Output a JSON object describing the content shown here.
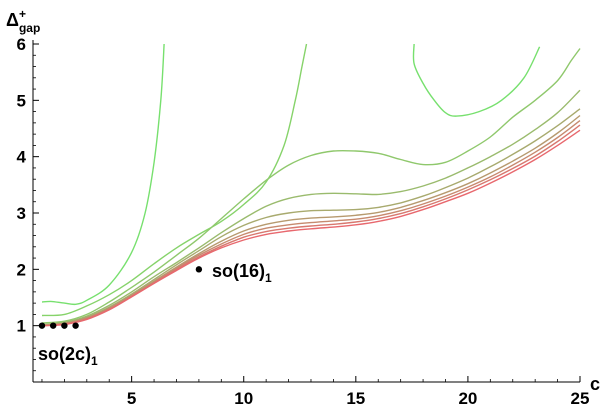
{
  "chart_data": {
    "type": "line",
    "title": "",
    "xlabel": "c",
    "ylabel": {
      "base": "Δ",
      "sup": "+",
      "sub": "gap"
    },
    "xlim": [
      0.6,
      25
    ],
    "ylim": [
      0,
      6
    ],
    "xticks": [
      5,
      10,
      15,
      20,
      25
    ],
    "yticks": [
      1,
      2,
      3,
      4,
      5,
      6
    ],
    "grid": false,
    "series": [
      {
        "color": "#77e06e",
        "points": [
          [
            1,
            1.42
          ],
          [
            1.4,
            1.43
          ],
          [
            2,
            1.4
          ],
          [
            2.5,
            1.38
          ],
          [
            3,
            1.45
          ],
          [
            4,
            1.72
          ],
          [
            5,
            2.3
          ],
          [
            5.6,
            3.0
          ],
          [
            6,
            3.9
          ],
          [
            6.3,
            5.0
          ],
          [
            6.45,
            6.0
          ]
        ]
      },
      {
        "color": "#86d36a",
        "points": [
          [
            1,
            1.18
          ],
          [
            2,
            1.2
          ],
          [
            3,
            1.35
          ],
          [
            4,
            1.55
          ],
          [
            5,
            1.8
          ],
          [
            6,
            2.1
          ],
          [
            7,
            2.38
          ],
          [
            8,
            2.62
          ],
          [
            9,
            2.85
          ],
          [
            10,
            3.15
          ],
          [
            11,
            3.55
          ],
          [
            11.8,
            4.2
          ],
          [
            12.3,
            5.0
          ],
          [
            12.6,
            5.6
          ],
          [
            12.8,
            6.0
          ]
        ]
      },
      {
        "color": "#77e06e",
        "points": [
          [
            17.6,
            6.0
          ],
          [
            17.6,
            5.65
          ],
          [
            18,
            5.3
          ],
          [
            18.5,
            5.0
          ],
          [
            19,
            4.78
          ],
          [
            19.5,
            4.72
          ],
          [
            20.5,
            4.8
          ],
          [
            21.5,
            5.0
          ],
          [
            22.5,
            5.4
          ],
          [
            23.2,
            5.95
          ]
        ]
      },
      {
        "color": "#8fc86c",
        "points": [
          [
            1,
            1.05
          ],
          [
            2,
            1.08
          ],
          [
            3,
            1.2
          ],
          [
            4,
            1.42
          ],
          [
            5,
            1.68
          ],
          [
            6,
            1.95
          ],
          [
            7,
            2.25
          ],
          [
            8,
            2.55
          ],
          [
            9,
            2.9
          ],
          [
            10,
            3.25
          ],
          [
            11,
            3.58
          ],
          [
            12,
            3.85
          ],
          [
            13,
            4.02
          ],
          [
            14,
            4.1
          ],
          [
            15,
            4.1
          ],
          [
            16,
            4.06
          ],
          [
            17,
            3.95
          ],
          [
            18,
            3.86
          ],
          [
            19,
            3.9
          ],
          [
            20,
            4.1
          ],
          [
            21,
            4.35
          ],
          [
            22,
            4.7
          ],
          [
            23,
            5.0
          ],
          [
            24,
            5.35
          ],
          [
            24.6,
            5.7
          ],
          [
            25,
            5.92
          ]
        ]
      },
      {
        "color": "#9abb6d",
        "points": [
          [
            1,
            1.02
          ],
          [
            2,
            1.06
          ],
          [
            3,
            1.17
          ],
          [
            4,
            1.36
          ],
          [
            5,
            1.6
          ],
          [
            6,
            1.87
          ],
          [
            7,
            2.12
          ],
          [
            8,
            2.38
          ],
          [
            9,
            2.65
          ],
          [
            10,
            2.9
          ],
          [
            11,
            3.12
          ],
          [
            12,
            3.26
          ],
          [
            13,
            3.33
          ],
          [
            14,
            3.35
          ],
          [
            15,
            3.34
          ],
          [
            16,
            3.33
          ],
          [
            17,
            3.38
          ],
          [
            18,
            3.48
          ],
          [
            19,
            3.62
          ],
          [
            20,
            3.8
          ],
          [
            21,
            4.0
          ],
          [
            22,
            4.22
          ],
          [
            23,
            4.48
          ],
          [
            24,
            4.78
          ],
          [
            25,
            5.18
          ]
        ]
      },
      {
        "color": "#a8aa6e",
        "points": [
          [
            1,
            1.01
          ],
          [
            2,
            1.05
          ],
          [
            3,
            1.15
          ],
          [
            4,
            1.33
          ],
          [
            5,
            1.56
          ],
          [
            6,
            1.82
          ],
          [
            7,
            2.08
          ],
          [
            8,
            2.33
          ],
          [
            9,
            2.58
          ],
          [
            10,
            2.78
          ],
          [
            11,
            2.92
          ],
          [
            12,
            3.0
          ],
          [
            13,
            3.04
          ],
          [
            14,
            3.05
          ],
          [
            15,
            3.06
          ],
          [
            16,
            3.1
          ],
          [
            17,
            3.18
          ],
          [
            18,
            3.3
          ],
          [
            19,
            3.45
          ],
          [
            20,
            3.62
          ],
          [
            21,
            3.82
          ],
          [
            22,
            4.04
          ],
          [
            23,
            4.28
          ],
          [
            24,
            4.55
          ],
          [
            25,
            4.85
          ]
        ]
      },
      {
        "color": "#b79a6f",
        "points": [
          [
            1,
            1.0
          ],
          [
            2,
            1.04
          ],
          [
            3,
            1.14
          ],
          [
            4,
            1.31
          ],
          [
            5,
            1.54
          ],
          [
            6,
            1.79
          ],
          [
            7,
            2.04
          ],
          [
            8,
            2.28
          ],
          [
            9,
            2.5
          ],
          [
            10,
            2.68
          ],
          [
            11,
            2.8
          ],
          [
            12,
            2.87
          ],
          [
            13,
            2.91
          ],
          [
            14,
            2.93
          ],
          [
            15,
            2.96
          ],
          [
            16,
            3.01
          ],
          [
            17,
            3.1
          ],
          [
            18,
            3.22
          ],
          [
            19,
            3.36
          ],
          [
            20,
            3.52
          ],
          [
            21,
            3.71
          ],
          [
            22,
            3.92
          ],
          [
            23,
            4.15
          ],
          [
            24,
            4.42
          ],
          [
            25,
            4.73
          ]
        ]
      },
      {
        "color": "#c78a6f",
        "points": [
          [
            1,
            1.0
          ],
          [
            2,
            1.03
          ],
          [
            3,
            1.13
          ],
          [
            4,
            1.3
          ],
          [
            5,
            1.53
          ],
          [
            6,
            1.77
          ],
          [
            7,
            2.02
          ],
          [
            8,
            2.25
          ],
          [
            9,
            2.45
          ],
          [
            10,
            2.62
          ],
          [
            11,
            2.73
          ],
          [
            12,
            2.79
          ],
          [
            13,
            2.83
          ],
          [
            14,
            2.86
          ],
          [
            15,
            2.89
          ],
          [
            16,
            2.95
          ],
          [
            17,
            3.04
          ],
          [
            18,
            3.16
          ],
          [
            19,
            3.3
          ],
          [
            20,
            3.46
          ],
          [
            21,
            3.64
          ],
          [
            22,
            3.85
          ],
          [
            23,
            4.08
          ],
          [
            24,
            4.34
          ],
          [
            25,
            4.64
          ]
        ]
      },
      {
        "color": "#d8786f",
        "points": [
          [
            1,
            1.0
          ],
          [
            2,
            1.03
          ],
          [
            3,
            1.12
          ],
          [
            4,
            1.29
          ],
          [
            5,
            1.52
          ],
          [
            6,
            1.76
          ],
          [
            7,
            2.0
          ],
          [
            8,
            2.22
          ],
          [
            9,
            2.41
          ],
          [
            10,
            2.57
          ],
          [
            11,
            2.67
          ],
          [
            12,
            2.73
          ],
          [
            13,
            2.77
          ],
          [
            14,
            2.8
          ],
          [
            15,
            2.84
          ],
          [
            16,
            2.9
          ],
          [
            17,
            2.99
          ],
          [
            18,
            3.11
          ],
          [
            19,
            3.25
          ],
          [
            20,
            3.41
          ],
          [
            21,
            3.59
          ],
          [
            22,
            3.79
          ],
          [
            23,
            4.01
          ],
          [
            24,
            4.27
          ],
          [
            25,
            4.56
          ]
        ]
      },
      {
        "color": "#e8686e",
        "points": [
          [
            1,
            1.0
          ],
          [
            2,
            1.02
          ],
          [
            3,
            1.11
          ],
          [
            4,
            1.28
          ],
          [
            5,
            1.51
          ],
          [
            6,
            1.75
          ],
          [
            7,
            1.98
          ],
          [
            8,
            2.2
          ],
          [
            9,
            2.38
          ],
          [
            10,
            2.52
          ],
          [
            11,
            2.62
          ],
          [
            12,
            2.68
          ],
          [
            13,
            2.72
          ],
          [
            14,
            2.75
          ],
          [
            15,
            2.79
          ],
          [
            16,
            2.85
          ],
          [
            17,
            2.94
          ],
          [
            18,
            3.06
          ],
          [
            19,
            3.2
          ],
          [
            20,
            3.35
          ],
          [
            21,
            3.53
          ],
          [
            22,
            3.73
          ],
          [
            23,
            3.95
          ],
          [
            24,
            4.2
          ],
          [
            25,
            4.47
          ]
        ]
      }
    ],
    "points": [
      [
        1,
        1
      ],
      [
        1.5,
        1
      ],
      [
        2,
        1
      ],
      [
        2.5,
        1
      ],
      [
        8,
        2
      ]
    ],
    "annotations": [
      {
        "main": "so(2c)",
        "sub": "1",
        "x": 1,
        "y": 1
      },
      {
        "main": "so(16)",
        "sub": "1",
        "x": 8,
        "y": 2
      }
    ]
  }
}
